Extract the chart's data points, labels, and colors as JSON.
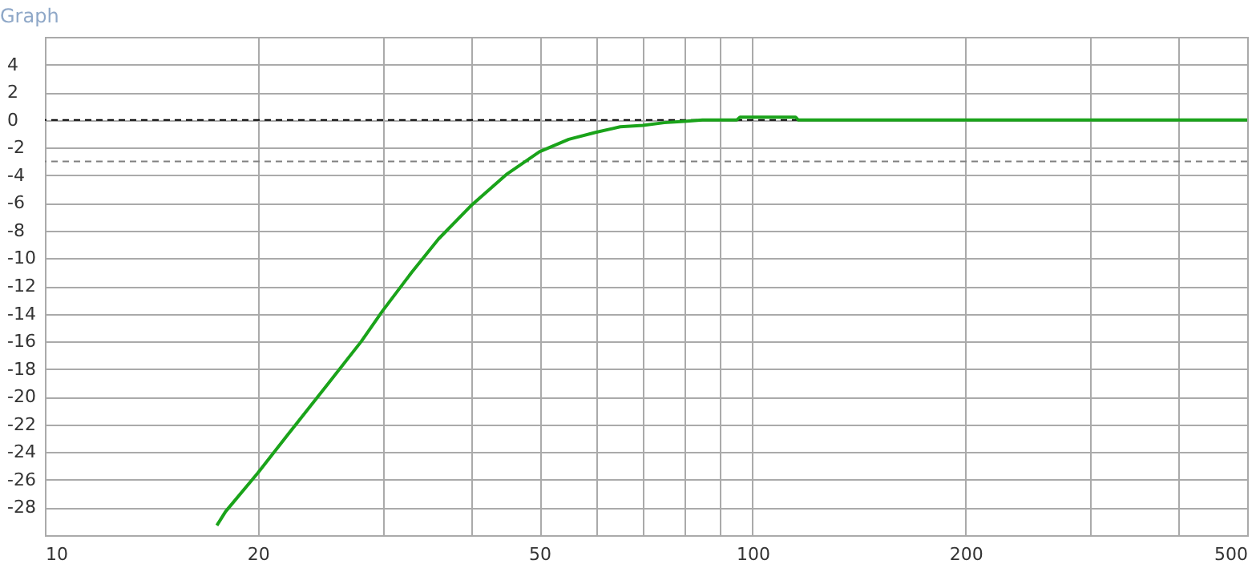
{
  "chart_data": {
    "type": "line",
    "title": "Graph",
    "x": [
      17.5,
      18,
      20,
      22,
      25,
      28,
      30,
      33,
      36,
      40,
      45,
      50,
      55,
      60,
      65,
      70,
      75,
      80,
      85,
      95,
      96,
      115,
      116,
      200,
      300,
      500
    ],
    "series": [
      {
        "color": "#1aa31a",
        "values": [
          -29.3,
          -28.3,
          -25.5,
          -22.8,
          -19.2,
          -16.0,
          -13.8,
          -11.0,
          -8.6,
          -6.2,
          -3.9,
          -2.3,
          -1.4,
          -0.9,
          -0.5,
          -0.4,
          -0.2,
          -0.1,
          0,
          0,
          0.2,
          0.2,
          0,
          0,
          0,
          0
        ]
      }
    ],
    "log": "x",
    "xlim": [
      10,
      500
    ],
    "xticks": [
      10,
      20,
      {
        "value": 30,
        "label": null
      },
      {
        "value": 40,
        "label": null
      },
      50,
      {
        "value": 60,
        "label": null
      },
      {
        "value": 70,
        "label": null
      },
      {
        "value": 80,
        "label": null
      },
      {
        "value": 90,
        "label": null
      },
      100,
      200,
      {
        "value": 300,
        "label": null
      },
      {
        "value": 400,
        "label": null
      },
      500
    ],
    "ylim": [
      -30,
      6
    ],
    "yticks": [
      -28,
      -26,
      -24,
      -22,
      -20,
      -18,
      -16,
      -14,
      -12,
      -10,
      -8,
      -6,
      -4,
      -2,
      0,
      2,
      4
    ],
    "ref_lines": [
      {
        "axis": "y",
        "value": 0,
        "color": "#000000",
        "line_style": "dashed"
      },
      {
        "axis": "y",
        "value": -3,
        "color": "#808080",
        "line_style": "dashed"
      }
    ],
    "grid": true,
    "marker": "none",
    "line_style": "solid"
  }
}
